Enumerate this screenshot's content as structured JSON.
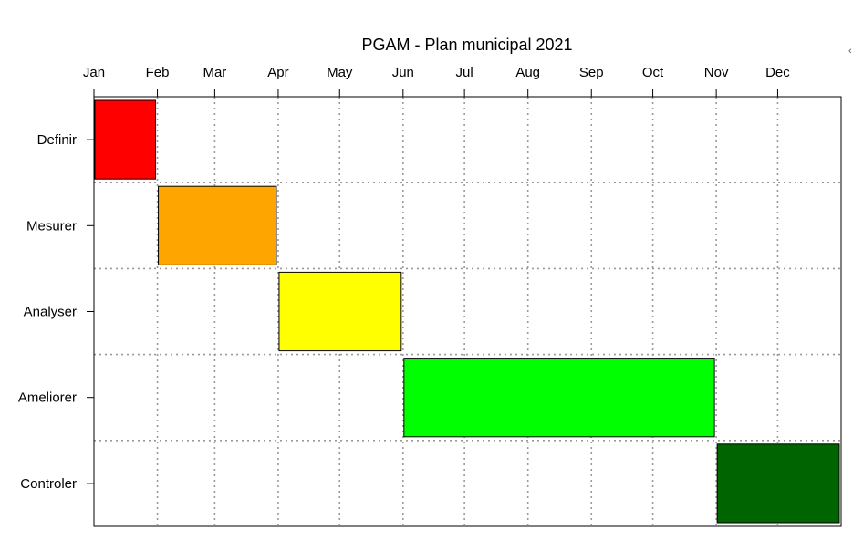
{
  "chart_data": {
    "type": "gantt",
    "title": "PGAM - Plan municipal 2021",
    "x_axis": {
      "type": "date",
      "position": "top",
      "range": [
        "2021-01-01",
        "2022-01-01"
      ],
      "ticks": [
        {
          "date": "2021-01-01",
          "label": "Jan"
        },
        {
          "date": "2021-02-01",
          "label": "Feb"
        },
        {
          "date": "2021-03-01",
          "label": "Mar"
        },
        {
          "date": "2021-04-01",
          "label": "Apr"
        },
        {
          "date": "2021-05-01",
          "label": "May"
        },
        {
          "date": "2021-06-01",
          "label": "Jun"
        },
        {
          "date": "2021-07-01",
          "label": "Jul"
        },
        {
          "date": "2021-08-01",
          "label": "Aug"
        },
        {
          "date": "2021-09-01",
          "label": "Sep"
        },
        {
          "date": "2021-10-01",
          "label": "Oct"
        },
        {
          "date": "2021-11-01",
          "label": "Nov"
        },
        {
          "date": "2021-12-01",
          "label": "Dec"
        }
      ]
    },
    "grid": true,
    "grid_style": "dotted",
    "tasks": [
      {
        "label": "Definir",
        "start": "2021-01-01",
        "end": "2021-01-31",
        "color": "#ff0000"
      },
      {
        "label": "Mesurer",
        "start": "2021-02-01",
        "end": "2021-03-31",
        "color": "#ffa500"
      },
      {
        "label": "Analyser",
        "start": "2021-04-01",
        "end": "2021-05-31",
        "color": "#ffff00"
      },
      {
        "label": "Ameliorer",
        "start": "2021-06-01",
        "end": "2021-10-31",
        "color": "#00ff00"
      },
      {
        "label": "Controler",
        "start": "2021-11-01",
        "end": "2021-12-31",
        "color": "#006400"
      }
    ]
  },
  "edge_glyph": "‹"
}
